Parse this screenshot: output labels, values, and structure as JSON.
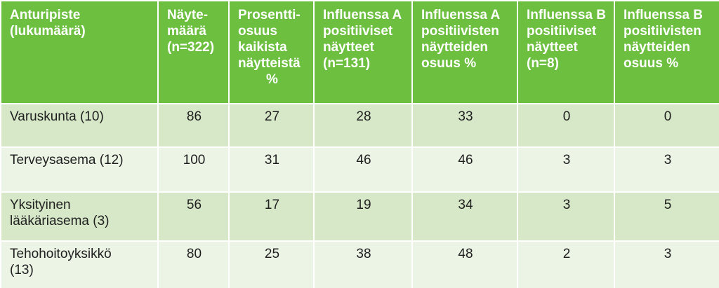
{
  "table": {
    "headers": [
      [
        "Anturipiste",
        "(lukumäärä)"
      ],
      [
        "Näyte-",
        "määrä",
        "(n=322)"
      ],
      [
        "Prosentti-",
        "osuus",
        "kaikista",
        "näytteistä",
        "%"
      ],
      [
        "Influenssa A",
        "positiiviset",
        "näytteet",
        "(n=131)"
      ],
      [
        "Influenssa A",
        "positiivisten",
        "näytteiden",
        "osuus %"
      ],
      [
        "Influenssa B",
        "positiiviset",
        "näytteet",
        "(n=8)"
      ],
      [
        "Influenssa B",
        "positiivisten",
        "näytteiden",
        "osuus %"
      ]
    ],
    "rows": [
      {
        "label": [
          "Varuskunta (10)"
        ],
        "values": [
          "86",
          "27",
          "28",
          "33",
          "0",
          "0"
        ]
      },
      {
        "label": [
          "Terveysasema (12)"
        ],
        "values": [
          "100",
          "31",
          "46",
          "46",
          "3",
          "3"
        ]
      },
      {
        "label": [
          "Yksityinen",
          "lääkäriasema (3)"
        ],
        "values": [
          "56",
          "17",
          "19",
          "34",
          "3",
          "5"
        ]
      },
      {
        "label": [
          "Tehohoitoyksikkö",
          "(13)"
        ],
        "values": [
          "80",
          "25",
          "38",
          "48",
          "2",
          "3"
        ]
      }
    ]
  },
  "colors": {
    "header_bg": "#6cbf3f",
    "row_odd_bg": "#d6e8c8",
    "row_even_bg": "#ecf4e6",
    "header_text": "#ffffff",
    "body_text": "#1f1f1f"
  }
}
